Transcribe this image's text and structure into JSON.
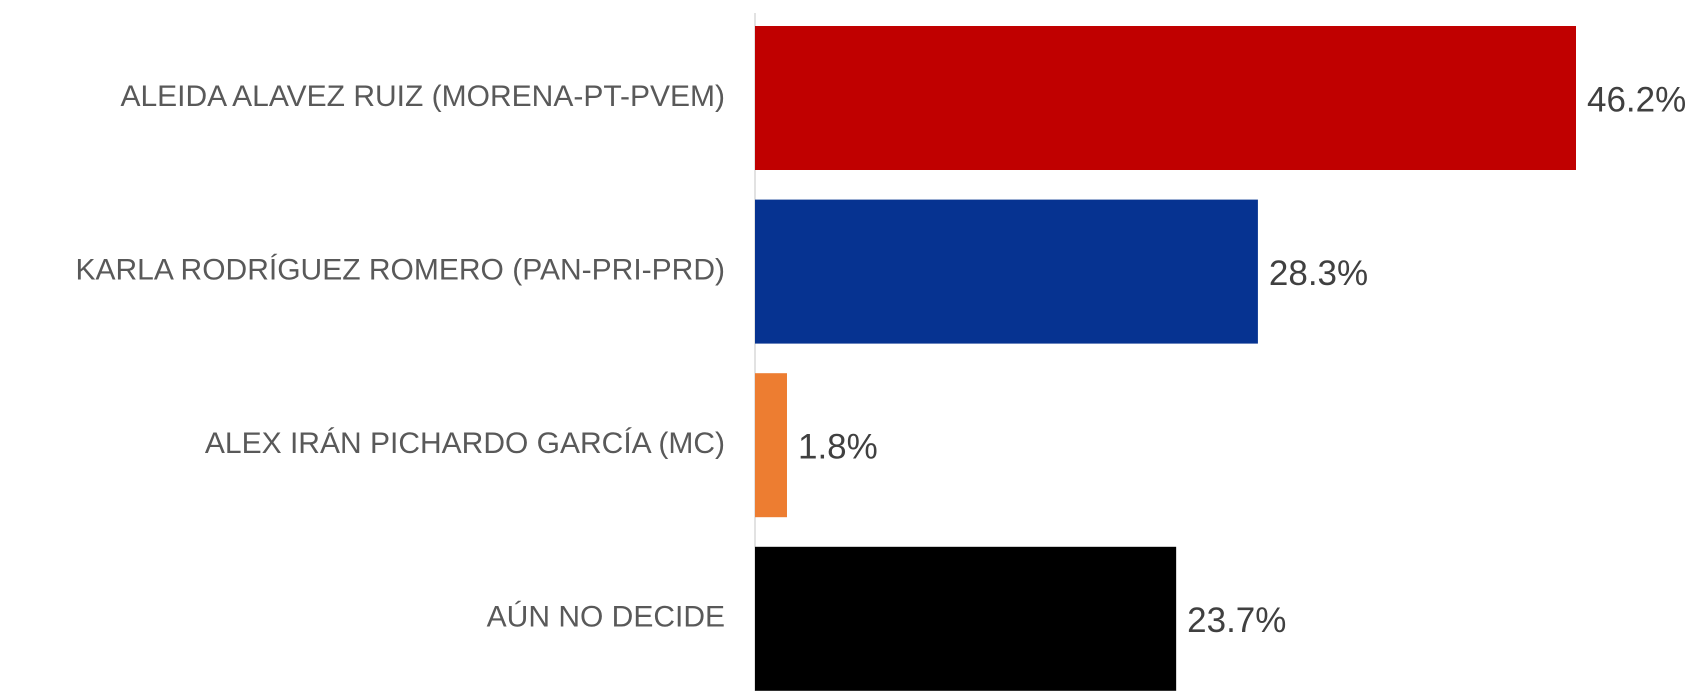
{
  "chart_data": {
    "type": "bar",
    "orientation": "horizontal",
    "categories": [
      "ALEIDA ALAVEZ RUIZ (MORENA-PT-PVEM)",
      "KARLA RODRÍGUEZ ROMERO (PAN-PRI-PRD)",
      "ALEX IRÁN PICHARDO GARCÍA (MC)",
      "AÚN NO DECIDE"
    ],
    "values": [
      46.2,
      28.3,
      1.8,
      23.7
    ],
    "value_labels": [
      "46.2%",
      "28.3%",
      "1.8%",
      "23.7%"
    ],
    "colors": [
      "#c00000",
      "#063391",
      "#ed7d31",
      "#000000"
    ]
  }
}
